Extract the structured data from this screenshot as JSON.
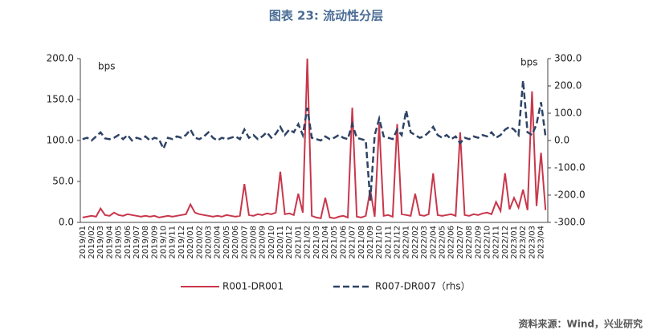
{
  "chart_data": {
    "type": "line",
    "title": "图表 23: 流动性分层",
    "y_unit": "bps",
    "y2_unit": "bps",
    "source": "资料来源：Wind，兴业研究",
    "categories": [
      "2019/01",
      null,
      "2019/02",
      null,
      "2019/03",
      null,
      "2019/04",
      null,
      "2019/05",
      null,
      "2019/06",
      null,
      "2019/07",
      null,
      "2019/08",
      null,
      "2019/09",
      null,
      "2019/10",
      null,
      "2019/11",
      null,
      "2019/12",
      null,
      "2020/01",
      null,
      "2020/02",
      null,
      "2020/03",
      null,
      "2020/04",
      null,
      "2020/05",
      null,
      "2020/06",
      null,
      "2020/07",
      null,
      "2020/08",
      null,
      "2020/09",
      null,
      "2020/10",
      null,
      "2020/11",
      null,
      "2020/12",
      null,
      "2021/01",
      null,
      "2021/02",
      null,
      "2021/03",
      null,
      "2021/04",
      null,
      "2021/05",
      null,
      "2021/06",
      null,
      "2021/07",
      null,
      "2021/08",
      null,
      "2021/09",
      null,
      "2021/10",
      null,
      "2021/11",
      null,
      "2021/12",
      null,
      "2022/01",
      null,
      "2022/02",
      null,
      "2022/03",
      null,
      "2022/04",
      null,
      "2022/05",
      null,
      "2022/06",
      null,
      "2022/07",
      null,
      "2022/08",
      null,
      "2022/09",
      null,
      "2022/10",
      null,
      "2022/11",
      null,
      "2022/12",
      null,
      "2023/01",
      null,
      "2023/02",
      null,
      "2023/03",
      null,
      "2023/04",
      null
    ],
    "series": [
      {
        "name": "R001-DR001",
        "color": "#c8374b",
        "dash": false,
        "values": [
          6,
          7,
          8,
          7,
          17,
          9,
          8,
          12,
          9,
          8,
          10,
          9,
          8,
          7,
          8,
          7,
          8,
          6,
          7,
          8,
          7,
          8,
          9,
          10,
          22,
          12,
          10,
          9,
          8,
          7,
          8,
          7,
          9,
          8,
          7,
          8,
          47,
          9,
          8,
          10,
          9,
          11,
          10,
          12,
          62,
          10,
          11,
          9,
          35,
          12,
          200,
          8,
          6,
          5,
          30,
          6,
          5,
          7,
          8,
          6,
          140,
          7,
          6,
          8,
          40,
          7,
          120,
          8,
          9,
          7,
          120,
          10,
          9,
          8,
          35,
          9,
          8,
          10,
          60,
          9,
          8,
          9,
          10,
          8,
          110,
          9,
          8,
          10,
          9,
          11,
          12,
          10,
          25,
          14,
          60,
          16,
          30,
          18,
          40,
          15,
          160,
          20,
          85,
          15
        ]
      },
      {
        "name": "R007-DR007（rhs）",
        "color": "#2e4365",
        "dash": true,
        "axis": "y2",
        "values": [
          5,
          10,
          0,
          15,
          30,
          8,
          5,
          10,
          20,
          5,
          20,
          0,
          10,
          5,
          15,
          0,
          10,
          5,
          -30,
          10,
          5,
          15,
          10,
          20,
          40,
          10,
          5,
          15,
          30,
          10,
          0,
          10,
          5,
          10,
          15,
          5,
          40,
          10,
          20,
          5,
          15,
          30,
          10,
          25,
          50,
          20,
          40,
          30,
          60,
          20,
          120,
          10,
          5,
          0,
          15,
          5,
          10,
          20,
          10,
          5,
          60,
          10,
          5,
          0,
          -220,
          20,
          80,
          15,
          10,
          5,
          40,
          20,
          110,
          30,
          20,
          10,
          15,
          30,
          50,
          20,
          10,
          20,
          5,
          15,
          -10,
          10,
          5,
          15,
          10,
          20,
          15,
          30,
          10,
          20,
          40,
          50,
          40,
          20,
          220,
          30,
          20,
          60,
          140,
          15
        ]
      }
    ],
    "ylim": [
      0,
      200
    ],
    "yticks": [
      {
        "value": 0,
        "label": "0.0"
      },
      {
        "value": 50,
        "label": "50.0"
      },
      {
        "value": 100,
        "label": "100.0"
      },
      {
        "value": 150,
        "label": "150.0"
      },
      {
        "value": 200,
        "label": "200.0"
      }
    ],
    "y2lim": [
      -300,
      300
    ],
    "y2ticks": [
      {
        "value": -300,
        "label": "-300.0"
      },
      {
        "value": -200,
        "label": "-200.0"
      },
      {
        "value": -100,
        "label": "-100.0"
      },
      {
        "value": 0,
        "label": "0.0"
      },
      {
        "value": 100,
        "label": "100.0"
      },
      {
        "value": 200,
        "label": "200.0"
      },
      {
        "value": 300,
        "label": "300.0"
      }
    ],
    "grid": false,
    "legend": "bottom"
  }
}
